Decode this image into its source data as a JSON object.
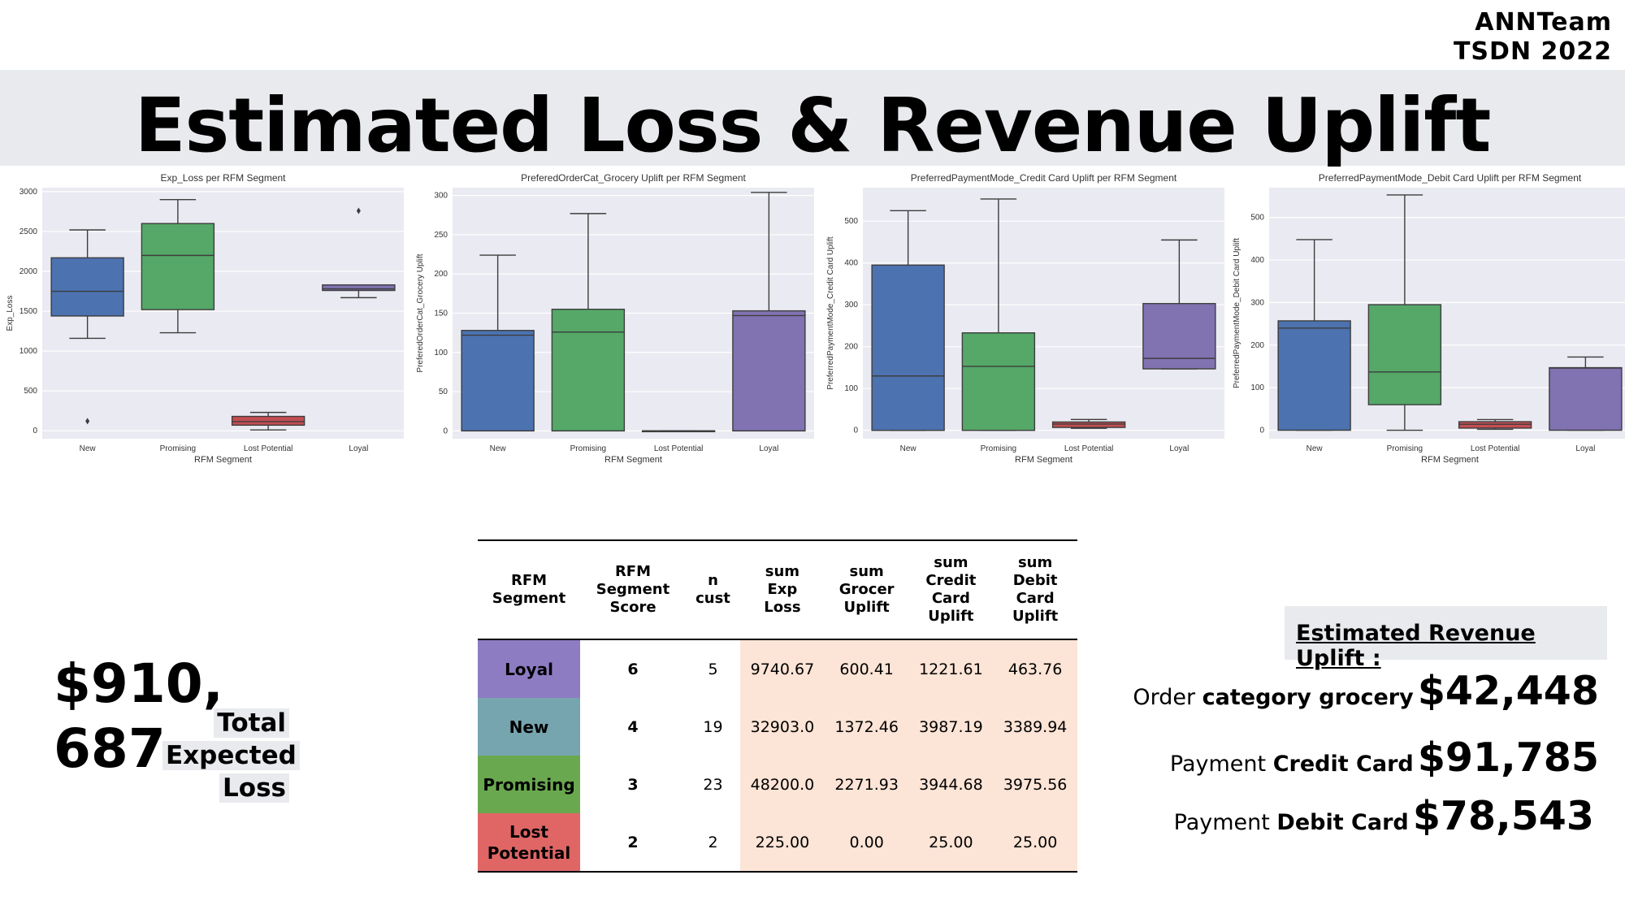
{
  "header": {
    "team": "ANNTeam",
    "event": "TSDN 2022",
    "title": "Estimated Loss & Revenue Uplift"
  },
  "categories": [
    "New",
    "Promising",
    "Lost Potential",
    "Loyal"
  ],
  "colors": {
    "New": "#4c72b0",
    "Promising": "#55a868",
    "Lost Potential": "#c44e52",
    "Loyal": "#8172b2",
    "plot_bg": "#eaeaf2"
  },
  "chart_data": [
    {
      "type": "box",
      "title": "Exp_Loss per RFM Segment",
      "xlabel": "RFM Segment",
      "ylabel": "Exp_Loss",
      "ylim": [
        -100,
        3050
      ],
      "yticks": [
        0,
        500,
        1000,
        1500,
        2000,
        2500,
        3000
      ],
      "boxes": [
        {
          "category": "New",
          "whislo": 1160,
          "q1": 1440,
          "med": 1750,
          "q3": 2170,
          "whishi": 2520,
          "fliers": [
            120
          ]
        },
        {
          "category": "Promising",
          "whislo": 1230,
          "q1": 1520,
          "med": 2200,
          "q3": 2600,
          "whishi": 2900,
          "fliers": []
        },
        {
          "category": "Lost Potential",
          "whislo": 10,
          "q1": 70,
          "med": 115,
          "q3": 180,
          "whishi": 230,
          "fliers": []
        },
        {
          "category": "Loyal",
          "whislo": 1670,
          "q1": 1760,
          "med": 1780,
          "q3": 1830,
          "whishi": 1830,
          "fliers": [
            2760
          ]
        }
      ]
    },
    {
      "type": "box",
      "title": "PreferedOrderCat_Grocery Uplift per RFM Segment",
      "xlabel": "RFM Segment",
      "ylabel": "PreferedOrderCat_Grocery Uplift",
      "ylim": [
        -10,
        310
      ],
      "yticks": [
        0,
        50,
        100,
        150,
        200,
        250,
        300
      ],
      "boxes": [
        {
          "category": "New",
          "whislo": 0,
          "q1": 0,
          "med": 122,
          "q3": 128,
          "whishi": 224,
          "fliers": []
        },
        {
          "category": "Promising",
          "whislo": 0,
          "q1": 0,
          "med": 126,
          "q3": 155,
          "whishi": 277,
          "fliers": []
        },
        {
          "category": "Lost Potential",
          "whislo": 0,
          "q1": 0,
          "med": 0,
          "q3": 0,
          "whishi": 0,
          "fliers": []
        },
        {
          "category": "Loyal",
          "whislo": 0,
          "q1": 0,
          "med": 147,
          "q3": 153,
          "whishi": 304,
          "fliers": []
        }
      ]
    },
    {
      "type": "box",
      "title": "PreferredPaymentMode_Credit Card Uplift per RFM Segment",
      "xlabel": "RFM Segment",
      "ylabel": "PreferredPaymentMode_Credit Card Uplift",
      "ylim": [
        -20,
        580
      ],
      "yticks": [
        0,
        100,
        200,
        300,
        400,
        500
      ],
      "boxes": [
        {
          "category": "New",
          "whislo": 0,
          "q1": 0,
          "med": 130,
          "q3": 395,
          "whishi": 525,
          "fliers": []
        },
        {
          "category": "Promising",
          "whislo": 0,
          "q1": 0,
          "med": 153,
          "q3": 233,
          "whishi": 553,
          "fliers": []
        },
        {
          "category": "Lost Potential",
          "whislo": 5,
          "q1": 7,
          "med": 15,
          "q3": 20,
          "whishi": 26,
          "fliers": []
        },
        {
          "category": "Loyal",
          "whislo": 147,
          "q1": 147,
          "med": 172,
          "q3": 303,
          "whishi": 455,
          "fliers": []
        }
      ]
    },
    {
      "type": "box",
      "title": "PreferredPaymentMode_Debit Card Uplift per RFM Segment",
      "xlabel": "RFM Segment",
      "ylabel": "PreferredPaymentMode_Debit Card Uplift",
      "ylim": [
        -20,
        570
      ],
      "yticks": [
        0,
        100,
        200,
        300,
        400,
        500
      ],
      "boxes": [
        {
          "category": "New",
          "whislo": 0,
          "q1": 0,
          "med": 240,
          "q3": 257,
          "whishi": 448,
          "fliers": []
        },
        {
          "category": "Promising",
          "whislo": 0,
          "q1": 60,
          "med": 137,
          "q3": 295,
          "whishi": 553,
          "fliers": []
        },
        {
          "category": "Lost Potential",
          "whislo": 2,
          "q1": 5,
          "med": 14,
          "q3": 20,
          "whishi": 25,
          "fliers": []
        },
        {
          "category": "Loyal",
          "whislo": 0,
          "q1": 0,
          "med": 146,
          "q3": 147,
          "whishi": 172,
          "fliers": []
        }
      ]
    }
  ],
  "loss": {
    "amount_line1": "$910,",
    "amount_line2": "687",
    "label_line1": "Total",
    "label_line2": "Expected",
    "label_line3": "Loss"
  },
  "table": {
    "headers": [
      [
        "RFM",
        "Segment"
      ],
      [
        "RFM",
        "Segment",
        "Score"
      ],
      [
        "n",
        "cust"
      ],
      [
        "sum",
        "Exp",
        "Loss"
      ],
      [
        "sum",
        "Grocer",
        "Uplift"
      ],
      [
        "sum",
        "Credit",
        "Card",
        "Uplift"
      ],
      [
        "sum",
        "Debit",
        "Card",
        "Uplift"
      ]
    ],
    "rows": [
      {
        "segment": "Loyal",
        "color": "#8e7cc3",
        "score": "6",
        "n": "5",
        "loss": "9740.67",
        "grocer": "600.41",
        "credit": "1221.61",
        "debit": "463.76"
      },
      {
        "segment": "New",
        "color": "#76a5af",
        "score": "4",
        "n": "19",
        "loss": "32903.0",
        "grocer": "1372.46",
        "credit": "3987.19",
        "debit": "3389.94"
      },
      {
        "segment": "Promising",
        "color": "#6aa84f",
        "score": "3",
        "n": "23",
        "loss": "48200.0",
        "grocer": "2271.93",
        "credit": "3944.68",
        "debit": "3975.56"
      },
      {
        "segment": "Lost Potential",
        "color": "#e06666",
        "score": "2",
        "n": "2",
        "loss": "225.00",
        "grocer": "0.00",
        "credit": "25.00",
        "debit": "25.00"
      }
    ]
  },
  "revenue": {
    "title": "Estimated Revenue Uplift :",
    "lines": [
      {
        "pre": "Order ",
        "bold": "category grocery",
        "amount": "$42,448"
      },
      {
        "pre": "Payment ",
        "bold": "Credit Card",
        "amount": "$91,785"
      },
      {
        "pre": "Payment ",
        "bold": "Debit Card",
        "amount": "$78,543"
      }
    ]
  }
}
